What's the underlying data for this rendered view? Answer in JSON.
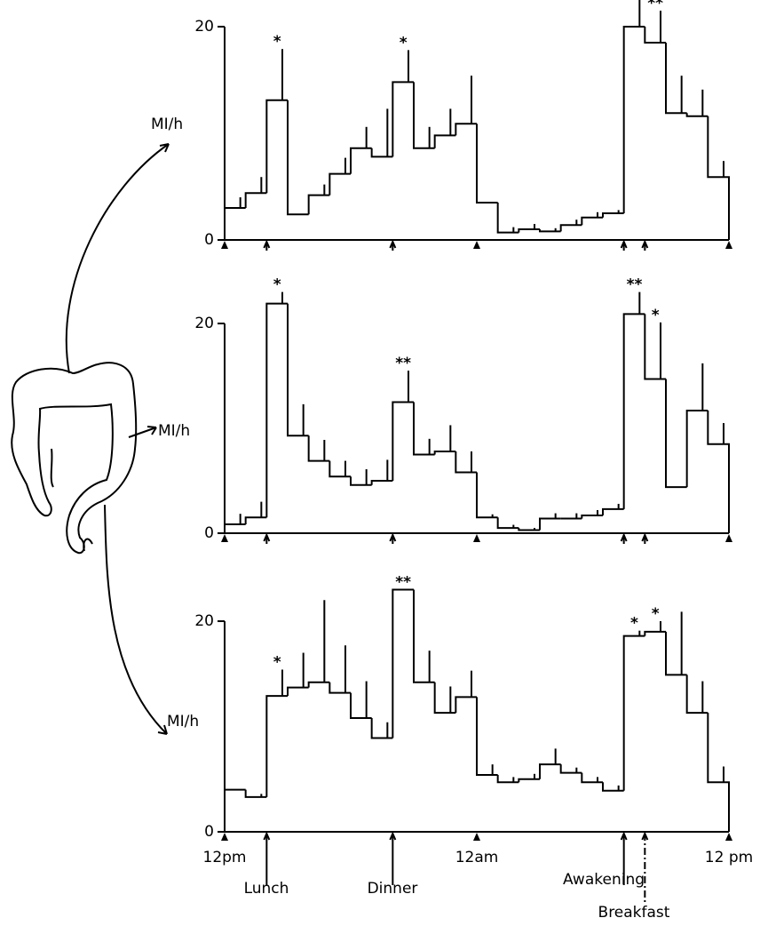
{
  "chart_data": [
    {
      "type": "histogram",
      "y_label": "MI/h",
      "bins": [
        0,
        1,
        2,
        3,
        4,
        5,
        6,
        7,
        8,
        9,
        10,
        11,
        12,
        13,
        14,
        15,
        16,
        17,
        18,
        19,
        20,
        21,
        22,
        23,
        24
      ],
      "values": [
        3,
        4.4,
        13.1,
        2.4,
        4.2,
        6.2,
        8.6,
        7.8,
        14.8,
        8.6,
        9.8,
        10.9,
        3.5,
        0.7,
        1.0,
        0.8,
        1.4,
        2.1,
        2.5,
        20,
        18.5,
        11.9,
        11.6,
        5.9
      ],
      "errors": [
        1,
        1.5,
        4.8,
        0,
        1,
        1.5,
        2,
        4.5,
        3,
        2,
        2.5,
        4.5,
        0,
        0.5,
        0.5,
        0.3,
        0.5,
        0.5,
        0.3,
        6.5,
        3,
        3.5,
        2.5,
        1.5
      ],
      "significance": [
        null,
        null,
        "*",
        null,
        null,
        null,
        null,
        null,
        "*",
        null,
        null,
        null,
        null,
        null,
        null,
        null,
        null,
        null,
        null,
        "*",
        "**",
        null,
        null,
        null
      ],
      "xlim": [
        0,
        24
      ],
      "xticks": [
        0,
        2,
        8,
        12,
        19,
        20,
        24
      ],
      "ylim": [
        0,
        23
      ],
      "yticks": [
        0,
        20
      ]
    },
    {
      "type": "histogram",
      "y_label": "MI/h",
      "bins": [
        0,
        1,
        2,
        3,
        4,
        5,
        6,
        7,
        8,
        9,
        10,
        11,
        12,
        13,
        14,
        15,
        16,
        17,
        18,
        19,
        20,
        21,
        22,
        23,
        24
      ],
      "values": [
        0.85,
        1.5,
        21.9,
        9.3,
        6.9,
        5.4,
        4.6,
        5,
        12.5,
        7.5,
        7.8,
        5.8,
        1.5,
        0.5,
        0.3,
        1.4,
        1.4,
        1.7,
        2.3,
        20.9,
        14.7,
        4.4,
        11.7,
        8.5
      ],
      "errors": [
        1,
        1.5,
        5.5,
        3,
        2,
        1.5,
        1.5,
        2,
        3,
        1.5,
        2.5,
        2,
        0.3,
        0.3,
        0.2,
        0.5,
        0.5,
        0.5,
        0.5,
        5.5,
        5.4,
        0,
        4.5,
        2
      ],
      "significance": [
        null,
        null,
        "*",
        null,
        null,
        null,
        null,
        null,
        "**",
        null,
        null,
        null,
        null,
        null,
        null,
        null,
        null,
        null,
        null,
        "**",
        "*",
        null,
        null,
        null
      ],
      "xlim": [
        0,
        24
      ],
      "xticks": [
        0,
        2,
        8,
        12,
        19,
        20,
        24
      ],
      "ylim": [
        0,
        23
      ],
      "yticks": [
        0,
        20
      ]
    },
    {
      "type": "histogram",
      "y_label": "MI/h",
      "bins": [
        0,
        1,
        2,
        3,
        4,
        5,
        6,
        7,
        8,
        9,
        10,
        11,
        12,
        13,
        14,
        15,
        16,
        17,
        18,
        19,
        20,
        21,
        22,
        23,
        24
      ],
      "values": [
        4.0,
        3.3,
        12.9,
        13.7,
        14.2,
        13.2,
        10.8,
        8.9,
        23,
        14.2,
        11.3,
        12.8,
        5.4,
        4.7,
        5,
        6.4,
        5.6,
        4.7,
        3.9,
        18.6,
        19,
        14.9,
        11.3,
        4.7
      ],
      "errors": [
        0,
        0.3,
        2.5,
        3.3,
        7.8,
        4.5,
        3.5,
        1.5,
        4.5,
        3,
        2.5,
        2.5,
        1,
        0.5,
        0.5,
        1.5,
        0.5,
        0.5,
        0.5,
        0.5,
        1,
        6,
        3,
        1.5
      ],
      "significance": [
        null,
        null,
        "*",
        null,
        null,
        null,
        null,
        null,
        "**",
        null,
        null,
        null,
        null,
        null,
        null,
        null,
        null,
        null,
        null,
        "*",
        "*",
        null,
        null,
        null
      ],
      "xlim": [
        0,
        24
      ],
      "xticks": [
        {
          "value": 0,
          "label": "12pm"
        },
        {
          "value": 2,
          "label": "Lunch"
        },
        {
          "value": 8,
          "label": "Dinner"
        },
        {
          "value": 12,
          "label": "12am"
        },
        {
          "value": 19,
          "label": "Awakening"
        },
        {
          "value": 20,
          "label": "Breakfast"
        },
        {
          "value": 24,
          "label": "12 pm"
        }
      ],
      "ylim": [
        0,
        23
      ],
      "yticks": [
        0,
        20
      ]
    }
  ]
}
